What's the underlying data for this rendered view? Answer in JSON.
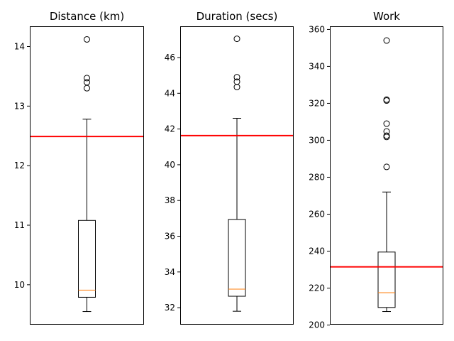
{
  "chart_data": [
    {
      "type": "box",
      "title": "Distance (km)",
      "ylim": [
        9.33,
        14.34
      ],
      "yticks": [
        10,
        11,
        12,
        13,
        14
      ],
      "box": {
        "whislo": 9.55,
        "q1": 9.79,
        "med": 9.91,
        "q3": 11.08,
        "whishi": 12.78
      },
      "fliers": [
        14.12,
        13.47,
        13.4,
        13.3
      ],
      "reference_line": 12.49,
      "grid": false,
      "xticks": false
    },
    {
      "type": "box",
      "title": "Duration (secs)",
      "ylim": [
        31.05,
        47.75
      ],
      "yticks": [
        32,
        34,
        36,
        38,
        40,
        42,
        44,
        46
      ],
      "box": {
        "whislo": 31.8,
        "q1": 32.64,
        "med": 33.04,
        "q3": 36.94,
        "whishi": 42.6
      },
      "fliers": [
        47.05,
        44.9,
        44.65,
        44.35
      ],
      "reference_line": 41.63,
      "grid": false,
      "xticks": false
    },
    {
      "type": "box",
      "title": "Work",
      "ylim": [
        200.2,
        361.7
      ],
      "yticks": [
        200,
        220,
        240,
        260,
        280,
        300,
        320,
        340,
        360
      ],
      "box": {
        "whislo": 207.3,
        "q1": 209.5,
        "med": 217.5,
        "q3": 239.5,
        "whishi": 272.0
      },
      "fliers": [
        354.0,
        322.0,
        321.5,
        309.0,
        304.8,
        302.5,
        301.8,
        285.6
      ],
      "reference_line": 231.5,
      "grid": false,
      "xticks": false
    }
  ],
  "colors": {
    "median": "#ff7f0e",
    "reference_line": "#ff0000",
    "box": "#000000"
  }
}
